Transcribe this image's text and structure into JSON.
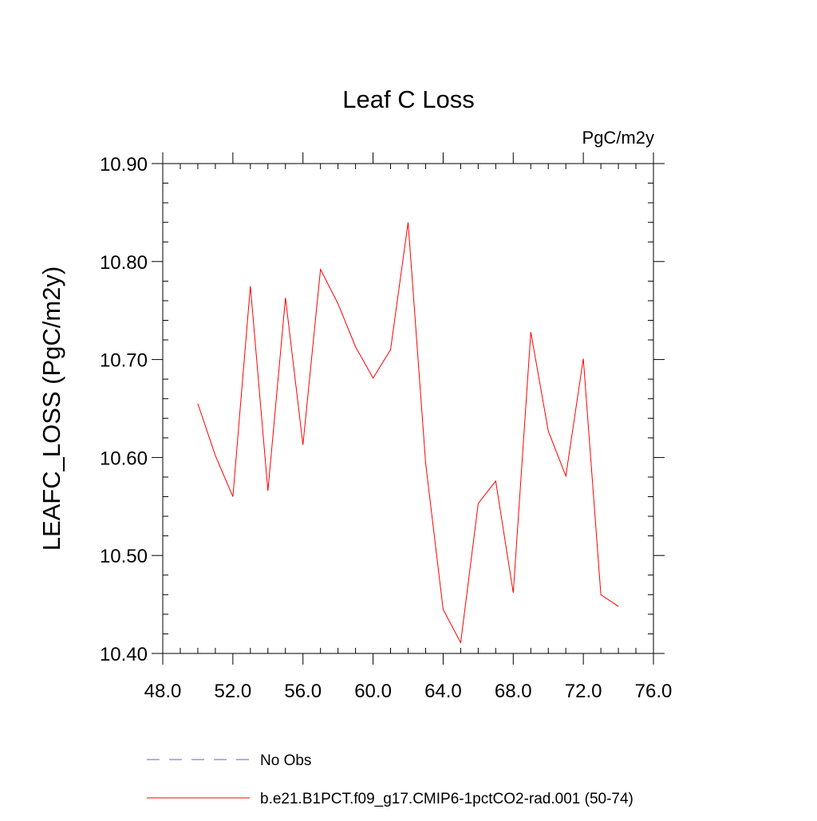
{
  "chart_data": {
    "type": "line",
    "title": "Leaf C Loss",
    "units": "PgC/m2y",
    "ylabel": "LEAFC_LOSS  (PgC/m2y)",
    "xlabel": "",
    "xlim": [
      48,
      76
    ],
    "ylim": [
      10.4,
      10.9
    ],
    "x_ticks": [
      "48.0",
      "52.0",
      "56.0",
      "60.0",
      "64.0",
      "68.0",
      "72.0",
      "76.0"
    ],
    "x_tick_values": [
      48,
      52,
      56,
      60,
      64,
      68,
      72,
      76
    ],
    "y_ticks": [
      "10.40",
      "10.50",
      "10.60",
      "10.70",
      "10.80",
      "10.90"
    ],
    "y_tick_values": [
      10.4,
      10.5,
      10.6,
      10.7,
      10.8,
      10.9
    ],
    "legend_position": "bottom",
    "series": [
      {
        "name": "b.e21.B1PCT.f09_g17.CMIP6-1pctCO2-rad.001 (50-74)",
        "color": "#ff0000",
        "x": [
          50,
          51,
          52,
          53,
          54,
          55,
          56,
          57,
          58,
          59,
          60,
          61,
          62,
          63,
          64,
          65,
          66,
          67,
          68,
          69,
          70,
          71,
          72,
          73,
          74
        ],
        "values": [
          10.655,
          10.602,
          10.56,
          10.775,
          10.566,
          10.763,
          10.613,
          10.792,
          10.757,
          10.713,
          10.681,
          10.71,
          10.84,
          10.594,
          10.445,
          10.411,
          10.553,
          10.576,
          10.462,
          10.728,
          10.627,
          10.581,
          10.701,
          10.46,
          10.448
        ]
      }
    ],
    "legend": [
      {
        "label": "No Obs",
        "color": "#6b5fbf",
        "style": "dashed"
      },
      {
        "label": "b.e21.B1PCT.f09_g17.CMIP6-1pctCO2-rad.001 (50-74)",
        "color": "#ff0000",
        "style": "solid"
      }
    ]
  }
}
